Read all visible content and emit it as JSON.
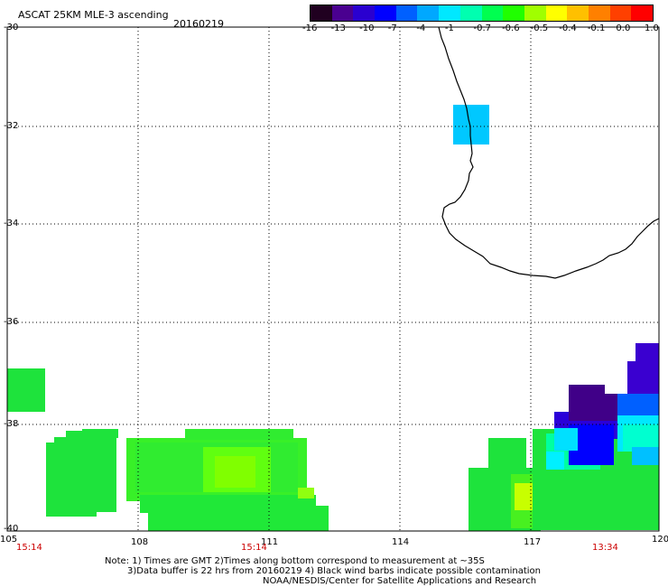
{
  "header": {
    "title": "ASCAT 25KM MLE-3 ascending",
    "date": "20160219"
  },
  "colorbar": {
    "labels": [
      "-16",
      "-13",
      "-10",
      "-7",
      "-4",
      "-1",
      "-0.7",
      "-0.6",
      "-0.5",
      "-0.4",
      "-0.1",
      "0.0",
      "1.0"
    ],
    "colors": [
      "#200020",
      "#4a0090",
      "#2a00d0",
      "#0000ff",
      "#0060ff",
      "#00a8ff",
      "#00e8ff",
      "#00ffb0",
      "#00ff50",
      "#20ff00",
      "#a0ff00",
      "#ffff00",
      "#ffc000",
      "#ff8000",
      "#ff4000",
      "#ff0000"
    ]
  },
  "axes": {
    "lat_labels": [
      "-30",
      "-32",
      "-34",
      "-36",
      "-38",
      "-40"
    ],
    "lon_labels": [
      "105",
      "108",
      "111",
      "114",
      "117",
      "120"
    ]
  },
  "time_labels": [
    "15:14",
    "15:14",
    "13:34"
  ],
  "notes": {
    "line1": "Note: 1) Times are GMT 2)Times along bottom correspond to measurement at ~35S",
    "line2": "3)Data buffer is 22 hrs from 20160219 4) Black wind barbs indicate possible contamination",
    "line3": "NOAA/NESDIS/Center for Satellite Applications and Research"
  }
}
